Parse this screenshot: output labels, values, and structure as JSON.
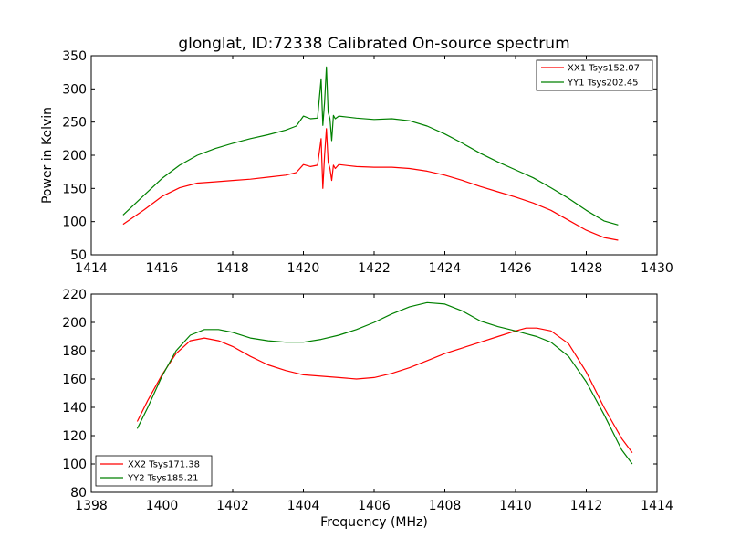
{
  "chart_data": [
    {
      "type": "line",
      "title": "glonglat, ID:72338 Calibrated On-source spectrum",
      "xlabel": "",
      "ylabel": "Power in Kelvin",
      "xlim": [
        1414,
        1430
      ],
      "ylim": [
        50,
        350
      ],
      "xticks": [
        "1414",
        "1416",
        "1418",
        "1420",
        "1422",
        "1424",
        "1426",
        "1428",
        "1430"
      ],
      "yticks": [
        "50",
        "100",
        "150",
        "200",
        "250",
        "300",
        "350"
      ],
      "legend_position": "top-right",
      "series": [
        {
          "name": "XX1 Tsys152.07",
          "color": "#ff0000",
          "x": [
            1414.9,
            1415.5,
            1416.0,
            1416.5,
            1417.0,
            1417.5,
            1418.0,
            1418.5,
            1419.0,
            1419.5,
            1419.8,
            1420.0,
            1420.2,
            1420.4,
            1420.5,
            1420.55,
            1420.6,
            1420.65,
            1420.7,
            1420.75,
            1420.8,
            1420.85,
            1420.9,
            1421.0,
            1421.5,
            1422.0,
            1422.5,
            1423.0,
            1423.5,
            1424.0,
            1424.5,
            1425.0,
            1425.5,
            1426.0,
            1426.5,
            1427.0,
            1427.5,
            1428.0,
            1428.5,
            1428.9
          ],
          "values": [
            96,
            118,
            138,
            151,
            158,
            160,
            162,
            164,
            167,
            170,
            174,
            186,
            183,
            185,
            225,
            150,
            200,
            240,
            190,
            180,
            162,
            185,
            180,
            186,
            183,
            182,
            182,
            180,
            176,
            170,
            162,
            153,
            145,
            137,
            128,
            117,
            102,
            87,
            76,
            72
          ]
        },
        {
          "name": "YY1 Tsys202.45",
          "color": "#008000",
          "x": [
            1414.9,
            1415.5,
            1416.0,
            1416.5,
            1417.0,
            1417.5,
            1418.0,
            1418.5,
            1419.0,
            1419.5,
            1419.8,
            1420.0,
            1420.2,
            1420.4,
            1420.5,
            1420.55,
            1420.6,
            1420.65,
            1420.7,
            1420.75,
            1420.8,
            1420.85,
            1420.9,
            1421.0,
            1421.5,
            1422.0,
            1422.5,
            1423.0,
            1423.5,
            1424.0,
            1424.5,
            1425.0,
            1425.5,
            1426.0,
            1426.5,
            1427.0,
            1427.5,
            1428.0,
            1428.5,
            1428.9
          ],
          "values": [
            110,
            140,
            165,
            185,
            200,
            210,
            218,
            225,
            231,
            238,
            244,
            259,
            255,
            256,
            315,
            245,
            280,
            333,
            265,
            255,
            222,
            260,
            255,
            259,
            256,
            254,
            255,
            252,
            244,
            232,
            218,
            203,
            190,
            178,
            166,
            151,
            135,
            117,
            101,
            95
          ]
        }
      ]
    },
    {
      "type": "line",
      "title": "",
      "xlabel": "Frequency (MHz)",
      "ylabel": "",
      "xlim": [
        1398,
        1414
      ],
      "ylim": [
        80,
        220
      ],
      "xticks": [
        "1398",
        "1400",
        "1402",
        "1404",
        "1406",
        "1408",
        "1410",
        "1412",
        "1414"
      ],
      "yticks": [
        "80",
        "100",
        "120",
        "140",
        "160",
        "180",
        "200",
        "220"
      ],
      "legend_position": "bottom-left",
      "series": [
        {
          "name": "XX2 Tsys171.38",
          "color": "#ff0000",
          "x": [
            1399.3,
            1399.6,
            1400.0,
            1400.4,
            1400.8,
            1401.2,
            1401.6,
            1402.0,
            1402.5,
            1403.0,
            1403.5,
            1404.0,
            1404.5,
            1405.0,
            1405.5,
            1406.0,
            1406.5,
            1407.0,
            1407.5,
            1408.0,
            1408.5,
            1409.0,
            1409.5,
            1410.0,
            1410.3,
            1410.6,
            1411.0,
            1411.5,
            1412.0,
            1412.5,
            1413.0,
            1413.3
          ],
          "values": [
            130,
            145,
            163,
            178,
            187,
            189,
            187,
            183,
            176,
            170,
            166,
            163,
            162,
            161,
            160,
            161,
            164,
            168,
            173,
            178,
            182,
            186,
            190,
            194,
            196,
            196,
            194,
            185,
            165,
            140,
            118,
            108
          ]
        },
        {
          "name": "YY2 Tsys185.21",
          "color": "#008000",
          "x": [
            1399.3,
            1399.6,
            1400.0,
            1400.4,
            1400.8,
            1401.2,
            1401.6,
            1402.0,
            1402.5,
            1403.0,
            1403.5,
            1404.0,
            1404.5,
            1405.0,
            1405.5,
            1406.0,
            1406.5,
            1407.0,
            1407.5,
            1408.0,
            1408.5,
            1409.0,
            1409.5,
            1410.0,
            1410.3,
            1410.6,
            1411.0,
            1411.5,
            1412.0,
            1412.5,
            1413.0,
            1413.3
          ],
          "values": [
            125,
            140,
            162,
            180,
            191,
            195,
            195,
            193,
            189,
            187,
            186,
            186,
            188,
            191,
            195,
            200,
            206,
            211,
            214,
            213,
            208,
            201,
            197,
            194,
            192,
            190,
            186,
            176,
            158,
            135,
            110,
            100
          ]
        }
      ]
    }
  ]
}
